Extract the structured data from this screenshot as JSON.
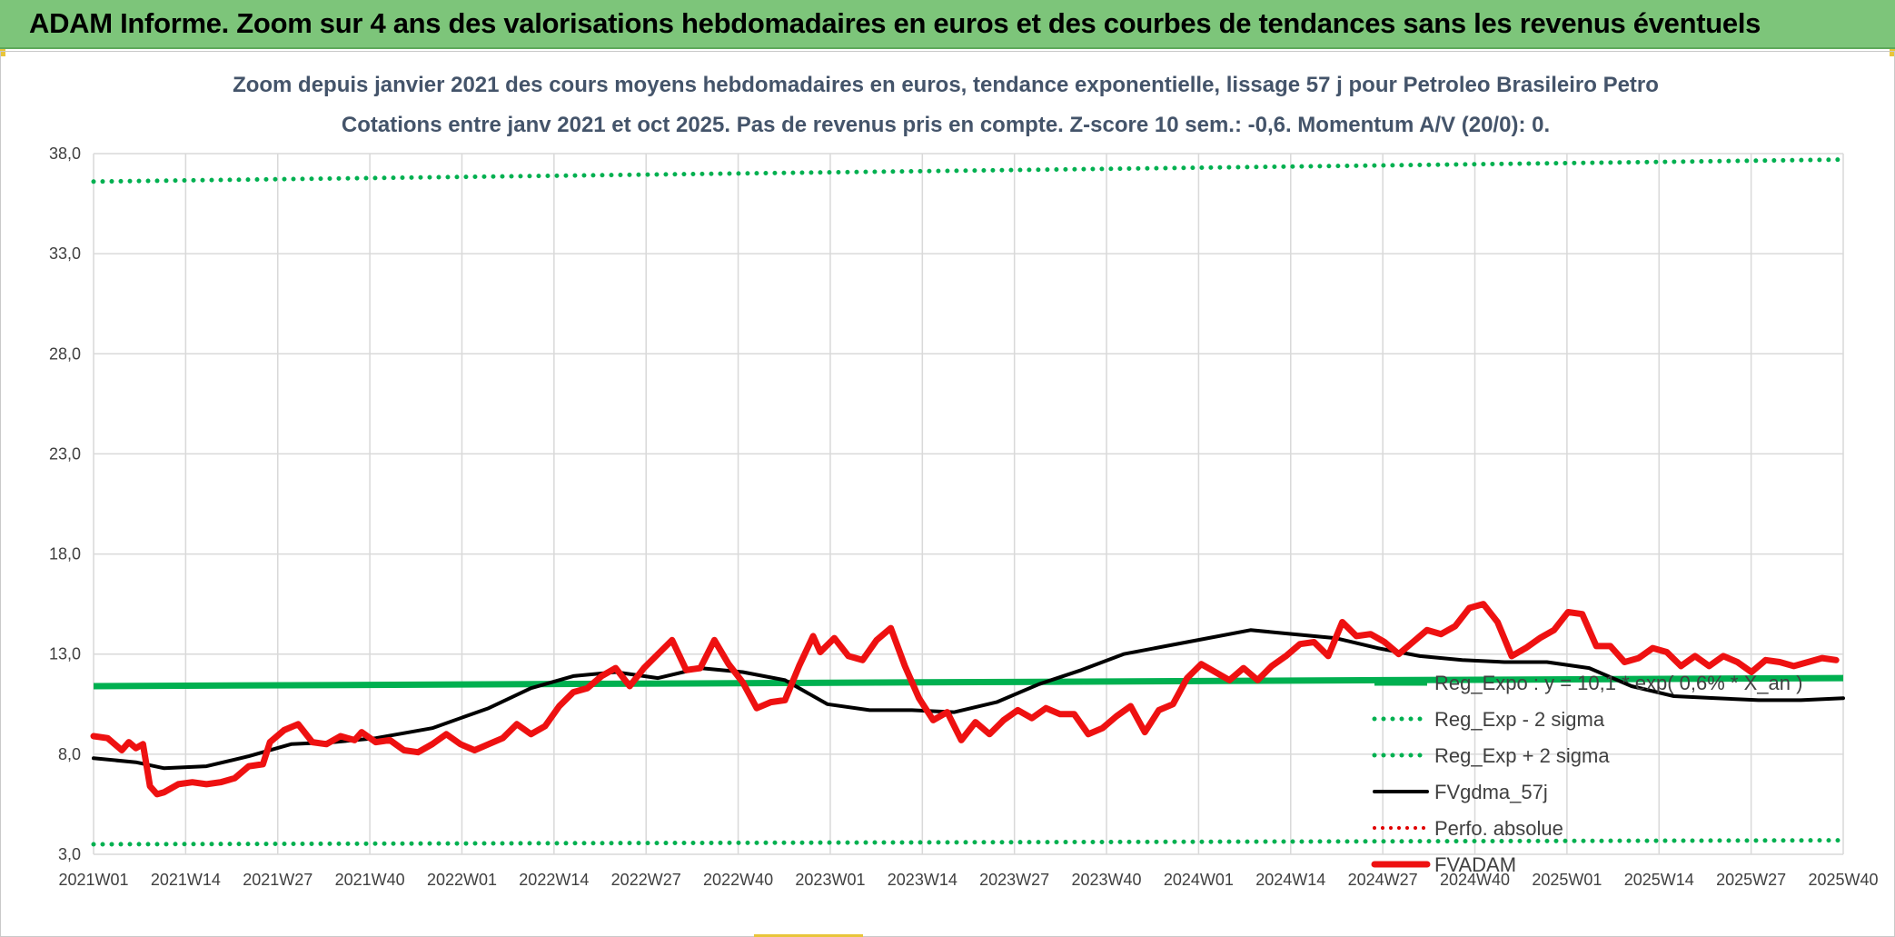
{
  "banner": {
    "title": "ADAM Informe. Zoom sur 4 ans des valorisations hebdomadaires en euros et des courbes de tendances sans les revenus éventuels"
  },
  "colors": {
    "banner": "#7dc57a",
    "reg_expo": "#00b050",
    "fvgdma": "#000000",
    "perfo": "#e00000",
    "fvadam": "#ee1111",
    "grid": "#d9d9d9"
  },
  "chart_data": {
    "type": "line",
    "title": "Zoom depuis janvier 2021 des cours moyens hebdomadaires en euros, tendance exponentielle, lissage 57 j pour Petroleo Brasileiro Petro",
    "subtitle": "Cotations entre janv 2021 et oct 2025. Pas de revenus pris en compte. Z-score 10 sem.: -0,6. Momentum A/V (20/0): 0.",
    "xlabel": "",
    "ylabel": "",
    "ylim": [
      3.0,
      38.0
    ],
    "y_ticks": [
      "3,0",
      "8,0",
      "13,0",
      "18,0",
      "23,0",
      "28,0",
      "33,0",
      "38,0"
    ],
    "x_ticks": [
      "2021W01",
      "2021W14",
      "2021W27",
      "2021W40",
      "2022W01",
      "2022W14",
      "2022W27",
      "2022W40",
      "2023W01",
      "2023W14",
      "2023W27",
      "2023W40",
      "2024W01",
      "2024W14",
      "2024W27",
      "2024W40",
      "2025W01",
      "2025W14",
      "2025W27",
      "2025W40"
    ],
    "week_range": [
      0,
      248
    ],
    "grid": true,
    "legend_position": "right",
    "series": [
      {
        "name": "Reg_Expo : y = 10,1 * exp( 0,6% *  X_an )",
        "style": "solid",
        "points": [
          [
            0,
            11.4
          ],
          [
            248,
            11.8
          ]
        ]
      },
      {
        "name": "Reg_Exp - 2 sigma",
        "style": "dotted",
        "points": [
          [
            0,
            3.5
          ],
          [
            248,
            3.7
          ]
        ]
      },
      {
        "name": "Reg_Exp + 2 sigma",
        "style": "dotted",
        "points": [
          [
            0,
            36.6
          ],
          [
            248,
            37.7
          ]
        ]
      },
      {
        "name": "FVgdma_57j",
        "style": "solid",
        "points": [
          [
            0,
            7.8
          ],
          [
            6,
            7.6
          ],
          [
            10,
            7.3
          ],
          [
            16,
            7.4
          ],
          [
            22,
            7.9
          ],
          [
            28,
            8.5
          ],
          [
            34,
            8.6
          ],
          [
            40,
            8.8
          ],
          [
            48,
            9.3
          ],
          [
            56,
            10.3
          ],
          [
            62,
            11.3
          ],
          [
            68,
            11.9
          ],
          [
            74,
            12.1
          ],
          [
            80,
            11.8
          ],
          [
            86,
            12.3
          ],
          [
            92,
            12.1
          ],
          [
            98,
            11.7
          ],
          [
            104,
            10.5
          ],
          [
            110,
            10.2
          ],
          [
            116,
            10.2
          ],
          [
            122,
            10.1
          ],
          [
            128,
            10.6
          ],
          [
            134,
            11.5
          ],
          [
            140,
            12.2
          ],
          [
            146,
            13.0
          ],
          [
            152,
            13.4
          ],
          [
            158,
            13.8
          ],
          [
            164,
            14.2
          ],
          [
            170,
            14.0
          ],
          [
            176,
            13.8
          ],
          [
            182,
            13.3
          ],
          [
            188,
            12.9
          ],
          [
            194,
            12.7
          ],
          [
            200,
            12.6
          ],
          [
            206,
            12.6
          ],
          [
            212,
            12.3
          ],
          [
            218,
            11.4
          ],
          [
            224,
            10.9
          ],
          [
            230,
            10.8
          ],
          [
            236,
            10.7
          ],
          [
            242,
            10.7
          ],
          [
            248,
            10.8
          ]
        ]
      },
      {
        "name": "Perfo. absolue",
        "style": "dotted",
        "points": []
      },
      {
        "name": "FVADAM",
        "style": "solid-thick",
        "points": [
          [
            0,
            8.9
          ],
          [
            2,
            8.8
          ],
          [
            4,
            8.2
          ],
          [
            5,
            8.6
          ],
          [
            6,
            8.3
          ],
          [
            7,
            8.5
          ],
          [
            8,
            6.4
          ],
          [
            9,
            6.0
          ],
          [
            10,
            6.1
          ],
          [
            12,
            6.5
          ],
          [
            14,
            6.6
          ],
          [
            16,
            6.5
          ],
          [
            18,
            6.6
          ],
          [
            20,
            6.8
          ],
          [
            22,
            7.4
          ],
          [
            24,
            7.5
          ],
          [
            25,
            8.6
          ],
          [
            27,
            9.2
          ],
          [
            29,
            9.5
          ],
          [
            31,
            8.6
          ],
          [
            33,
            8.5
          ],
          [
            35,
            8.9
          ],
          [
            37,
            8.7
          ],
          [
            38,
            9.1
          ],
          [
            40,
            8.6
          ],
          [
            42,
            8.7
          ],
          [
            44,
            8.2
          ],
          [
            46,
            8.1
          ],
          [
            48,
            8.5
          ],
          [
            50,
            9.0
          ],
          [
            52,
            8.5
          ],
          [
            54,
            8.2
          ],
          [
            56,
            8.5
          ],
          [
            58,
            8.8
          ],
          [
            60,
            9.5
          ],
          [
            62,
            9.0
          ],
          [
            64,
            9.4
          ],
          [
            66,
            10.4
          ],
          [
            68,
            11.1
          ],
          [
            70,
            11.3
          ],
          [
            72,
            11.9
          ],
          [
            74,
            12.3
          ],
          [
            76,
            11.4
          ],
          [
            78,
            12.3
          ],
          [
            80,
            13.0
          ],
          [
            82,
            13.7
          ],
          [
            84,
            12.2
          ],
          [
            86,
            12.3
          ],
          [
            88,
            13.7
          ],
          [
            90,
            12.5
          ],
          [
            92,
            11.6
          ],
          [
            94,
            10.3
          ],
          [
            96,
            10.6
          ],
          [
            98,
            10.7
          ],
          [
            100,
            12.4
          ],
          [
            102,
            13.9
          ],
          [
            103,
            13.1
          ],
          [
            105,
            13.8
          ],
          [
            107,
            12.9
          ],
          [
            109,
            12.7
          ],
          [
            111,
            13.7
          ],
          [
            113,
            14.3
          ],
          [
            115,
            12.4
          ],
          [
            117,
            10.8
          ],
          [
            119,
            9.7
          ],
          [
            121,
            10.1
          ],
          [
            123,
            8.7
          ],
          [
            125,
            9.6
          ],
          [
            127,
            9.0
          ],
          [
            129,
            9.7
          ],
          [
            131,
            10.2
          ],
          [
            133,
            9.8
          ],
          [
            135,
            10.3
          ],
          [
            137,
            10.0
          ],
          [
            139,
            10.0
          ],
          [
            141,
            9.0
          ],
          [
            143,
            9.3
          ],
          [
            145,
            9.9
          ],
          [
            147,
            10.4
          ],
          [
            149,
            9.1
          ],
          [
            151,
            10.2
          ],
          [
            153,
            10.5
          ],
          [
            155,
            11.8
          ],
          [
            157,
            12.5
          ],
          [
            159,
            12.1
          ],
          [
            161,
            11.7
          ],
          [
            163,
            12.3
          ],
          [
            165,
            11.7
          ],
          [
            167,
            12.4
          ],
          [
            169,
            12.9
          ],
          [
            171,
            13.5
          ],
          [
            173,
            13.6
          ],
          [
            175,
            12.9
          ],
          [
            177,
            14.6
          ],
          [
            179,
            13.9
          ],
          [
            181,
            14.0
          ],
          [
            183,
            13.6
          ],
          [
            185,
            13.0
          ],
          [
            187,
            13.6
          ],
          [
            189,
            14.2
          ],
          [
            191,
            14.0
          ],
          [
            193,
            14.4
          ],
          [
            195,
            15.3
          ],
          [
            197,
            15.5
          ],
          [
            199,
            14.6
          ],
          [
            201,
            12.9
          ],
          [
            203,
            13.3
          ],
          [
            205,
            13.8
          ],
          [
            207,
            14.2
          ],
          [
            209,
            15.1
          ],
          [
            211,
            15.0
          ],
          [
            213,
            13.4
          ],
          [
            215,
            13.4
          ],
          [
            217,
            12.6
          ],
          [
            219,
            12.8
          ],
          [
            221,
            13.3
          ],
          [
            223,
            13.1
          ],
          [
            225,
            12.4
          ],
          [
            227,
            12.9
          ],
          [
            229,
            12.4
          ],
          [
            231,
            12.9
          ],
          [
            233,
            12.6
          ],
          [
            235,
            12.1
          ],
          [
            237,
            12.7
          ],
          [
            239,
            12.6
          ],
          [
            241,
            12.4
          ],
          [
            243,
            12.6
          ],
          [
            245,
            12.8
          ],
          [
            247,
            12.7
          ]
        ]
      }
    ]
  }
}
